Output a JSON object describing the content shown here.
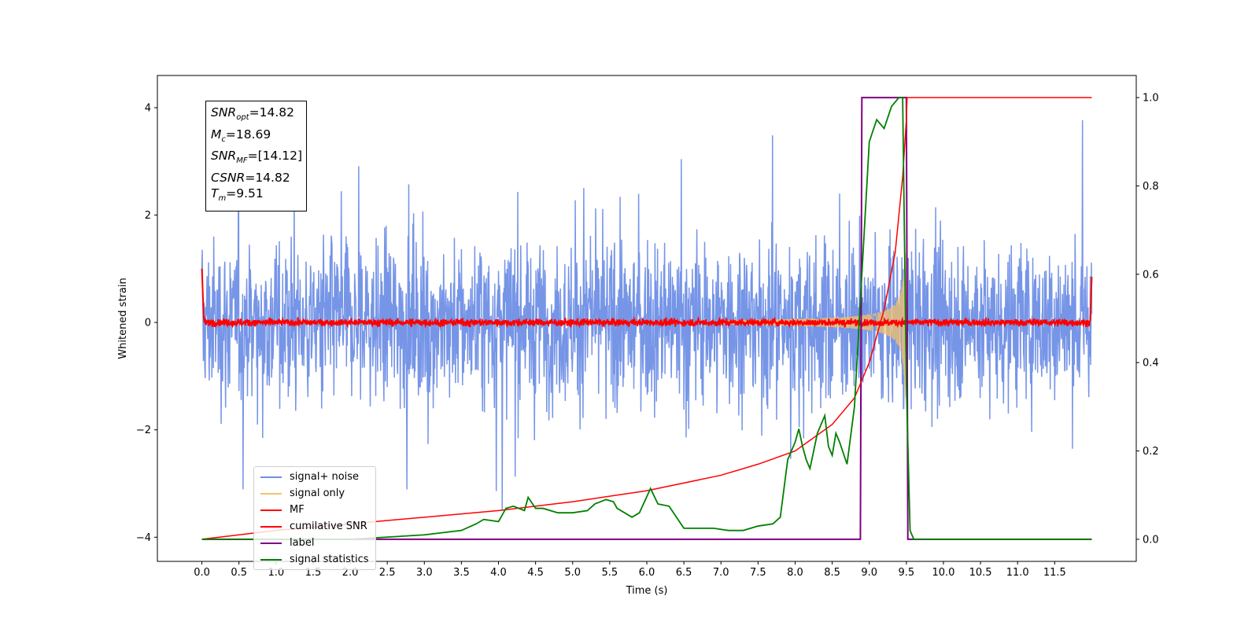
{
  "chart_data": {
    "type": "line",
    "xlabel": "Time (s)",
    "ylabel_left": "Whitened strain",
    "ylabel_right": "",
    "xlim": [
      -0.6,
      12.6
    ],
    "ylim_left": [
      -4.45,
      4.6
    ],
    "ylim_right": [
      -0.05,
      1.05
    ],
    "x_ticks": [
      "0.0",
      "0.5",
      "1.0",
      "1.5",
      "2.0",
      "2.5",
      "3.0",
      "3.5",
      "4.0",
      "4.5",
      "5.0",
      "5.5",
      "6.0",
      "6.5",
      "7.0",
      "7.5",
      "8.0",
      "8.5",
      "9.0",
      "9.5",
      "10.0",
      "10.5",
      "11.0",
      "11.5"
    ],
    "x_tick_values": [
      0,
      0.5,
      1,
      1.5,
      2,
      2.5,
      3,
      3.5,
      4,
      4.5,
      5,
      5.5,
      6,
      6.5,
      7,
      7.5,
      8,
      8.5,
      9,
      9.5,
      10,
      10.5,
      11,
      11.5
    ],
    "y_ticks_left": [
      "4",
      "2",
      "0",
      "−2",
      "−4"
    ],
    "y_tick_values_left": [
      4,
      2,
      0,
      -2,
      -4
    ],
    "y_ticks_right": [
      "1.0",
      "0.8",
      "0.6",
      "0.4",
      "0.2",
      "0.0"
    ],
    "y_tick_values_right": [
      1.0,
      0.8,
      0.6,
      0.4,
      0.2,
      0.0
    ],
    "grid": false,
    "legend_position": "lower-left",
    "annotation": [
      {
        "sym": "SNR",
        "sub": "opt",
        "value": "=14.82"
      },
      {
        "sym": "M",
        "sub": "c",
        "value": "=18.69"
      },
      {
        "sym": "SNR",
        "sub": "MF",
        "value": "=[14.12]"
      },
      {
        "sym": "CSNR",
        "sub": "",
        "value": "=14.82"
      },
      {
        "sym": "T",
        "sub": "m",
        "value": "=9.51"
      }
    ],
    "series": [
      {
        "name": "signal+ noise",
        "color": "#6f8fe6",
        "axis": "left",
        "description_range": [
          -4.0,
          4.15
        ],
        "x_range": [
          0,
          12
        ]
      },
      {
        "name": "signal only",
        "color": "#f5c26b",
        "axis": "left",
        "chirp_end": 9.51,
        "peak_amplitude": 1.4
      },
      {
        "name": "MF",
        "color": "#ff0000",
        "axis": "left"
      },
      {
        "name": "cumilative SNR",
        "color": "#ff0000",
        "axis": "right",
        "x": [
          0.0,
          1.0,
          2.0,
          3.0,
          4.0,
          5.0,
          6.0,
          7.0,
          7.5,
          8.0,
          8.5,
          8.8,
          9.0,
          9.2,
          9.35,
          9.45,
          9.5,
          9.51,
          12.0
        ],
        "y": [
          0.0,
          0.02,
          0.035,
          0.05,
          0.065,
          0.085,
          0.11,
          0.145,
          0.17,
          0.2,
          0.26,
          0.32,
          0.4,
          0.52,
          0.65,
          0.82,
          0.95,
          1.0,
          1.0
        ]
      },
      {
        "name": "label",
        "color": "#800080",
        "axis": "right",
        "x": [
          0.0,
          8.88,
          8.9,
          9.5,
          9.52,
          12.0
        ],
        "y": [
          0,
          0,
          1,
          1,
          0,
          0
        ]
      },
      {
        "name": "signal statistics",
        "color": "#008000",
        "axis": "right",
        "x": [
          0.0,
          2.0,
          2.5,
          3.0,
          3.5,
          3.7,
          3.8,
          4.0,
          4.1,
          4.2,
          4.35,
          4.4,
          4.5,
          4.6,
          4.8,
          5.0,
          5.2,
          5.3,
          5.45,
          5.55,
          5.6,
          5.8,
          5.9,
          6.05,
          6.15,
          6.3,
          6.5,
          6.7,
          6.9,
          7.1,
          7.3,
          7.5,
          7.7,
          7.8,
          7.9,
          8.0,
          8.05,
          8.1,
          8.15,
          8.2,
          8.3,
          8.4,
          8.45,
          8.5,
          8.55,
          8.6,
          8.7,
          8.8,
          8.9,
          9.0,
          9.1,
          9.2,
          9.3,
          9.4,
          9.45,
          9.5,
          9.55,
          9.6,
          12.0
        ],
        "y": [
          0.0,
          0.0,
          0.005,
          0.01,
          0.02,
          0.035,
          0.045,
          0.04,
          0.07,
          0.075,
          0.065,
          0.095,
          0.07,
          0.07,
          0.06,
          0.06,
          0.065,
          0.08,
          0.09,
          0.085,
          0.07,
          0.05,
          0.06,
          0.115,
          0.08,
          0.075,
          0.025,
          0.025,
          0.025,
          0.02,
          0.02,
          0.03,
          0.035,
          0.05,
          0.18,
          0.22,
          0.25,
          0.21,
          0.18,
          0.16,
          0.24,
          0.28,
          0.21,
          0.19,
          0.24,
          0.22,
          0.17,
          0.3,
          0.6,
          0.9,
          0.95,
          0.93,
          0.98,
          1.0,
          1.0,
          0.35,
          0.02,
          0.0,
          0.0
        ]
      }
    ]
  }
}
